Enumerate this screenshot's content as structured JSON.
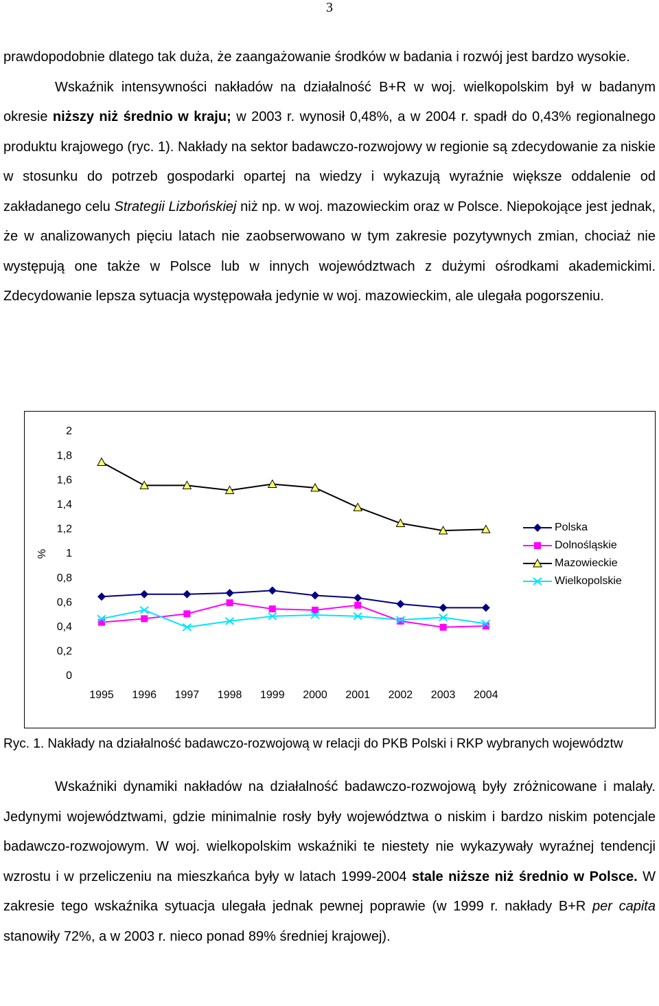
{
  "page_number": "3",
  "paragraphs": [
    {
      "indent": false,
      "runs": [
        {
          "text": "prawdopodobnie dlatego tak duża, że zaangażowanie środków w badania i rozwój jest bardzo wysokie."
        }
      ]
    },
    {
      "indent": true,
      "runs": [
        {
          "text": "Wskaźnik intensywności nakładów na działalność B+R w woj. wielkopolskim był w badanym okresie "
        },
        {
          "text": "niższy niż średnio w kraju;",
          "bold": true
        },
        {
          "text": " w 2003 r. wynosił 0,48%, a w 2004 r. spadł do 0,43% regionalnego produktu krajowego (ryc. 1). Nakłady na sektor badawczo-rozwojowy w regionie są zdecydowanie za niskie w stosunku do potrzeb gospodarki opartej na wiedzy i wykazują wyraźnie większe oddalenie od zakładanego celu "
        },
        {
          "text": "Strategii Lizbońskiej",
          "italic": true
        },
        {
          "text": " niż np. w woj. mazowieckim oraz w Polsce. Niepokojące jest jednak, że w analizowanych pięciu latach nie zaobserwowano w tym zakresie pozytywnych zmian, chociaż nie występują one także w Polsce lub w innych województwach z dużymi ośrodkami akademickimi. Zdecydowanie lepsza sytuacja występowała jedynie w woj. mazowieckim, ale ulegała pogorszeniu."
        }
      ]
    }
  ],
  "chart_data": {
    "type": "line",
    "y_label": "%",
    "categories": [
      "1995",
      "1996",
      "1997",
      "1998",
      "1999",
      "2000",
      "2001",
      "2002",
      "2003",
      "2004"
    ],
    "ylim": [
      0,
      2
    ],
    "yticks": [
      0,
      {
        "value": 0.2,
        "label": "0,2"
      },
      {
        "value": 0.4,
        "label": "0,4"
      },
      {
        "value": 0.6,
        "label": "0,6"
      },
      {
        "value": 0.8,
        "label": "0,8"
      },
      1,
      {
        "value": 1.2,
        "label": "1,2"
      },
      {
        "value": 1.4,
        "label": "1,4"
      },
      {
        "value": 1.6,
        "label": "1,6"
      },
      {
        "value": 1.8,
        "label": "1,8"
      },
      2
    ],
    "grid": false,
    "legend": "right",
    "series": [
      {
        "name": "Polska",
        "color": "#000080",
        "marker": "diamond",
        "marker_fill": "#000080",
        "values": [
          0.65,
          0.67,
          0.67,
          0.68,
          0.7,
          0.66,
          0.64,
          0.59,
          0.56,
          0.56
        ]
      },
      {
        "name": "Dolnośląskie",
        "color": "#ff00ff",
        "marker": "square",
        "marker_fill": "#ff00ff",
        "values": [
          0.44,
          0.47,
          0.51,
          0.6,
          0.55,
          0.54,
          0.58,
          0.45,
          0.4,
          0.41
        ]
      },
      {
        "name": "Mazowieckie",
        "color": "#000000",
        "marker": "triangle",
        "marker_fill": "#ffff66",
        "values": [
          1.75,
          1.56,
          1.56,
          1.52,
          1.57,
          1.54,
          1.38,
          1.25,
          1.19,
          1.2
        ]
      },
      {
        "name": "Wielkopolskie",
        "color": "#00e5ff",
        "marker": "x",
        "marker_fill": "#00e5ff",
        "values": [
          0.47,
          0.54,
          0.4,
          0.45,
          0.49,
          0.5,
          0.49,
          0.46,
          0.48,
          0.43
        ]
      }
    ]
  },
  "caption": "Ryc. 1. Nakłady na działalność badawczo-rozwojową w relacji do PKB Polski i RKP wybranych województw",
  "paragraphs_after": [
    {
      "indent": true,
      "runs": [
        {
          "text": "Wskaźniki dynamiki nakładów na działalność badawczo-rozwojową były zróżnicowane i malały. Jedynymi województwami, gdzie minimalnie rosły były województwa o niskim i bardzo niskim potencjale badawczo-rozwojowym. W woj. wielkopolskim wskaźniki te niestety nie wykazywały wyraźnej tendencji wzrostu i w przeliczeniu na mieszkańca były w latach 1999-2004 "
        },
        {
          "text": "stale niższe niż średnio w Polsce.",
          "bold": true
        },
        {
          "text": " W zakresie tego wskaźnika sytuacja ulegała jednak pewnej poprawie (w 1999 r. nakłady B+R "
        },
        {
          "text": "per capita",
          "italic": true
        },
        {
          "text": " stanowiły 72%, a w 2003 r. nieco ponad 89% średniej krajowej)."
        }
      ]
    }
  ]
}
